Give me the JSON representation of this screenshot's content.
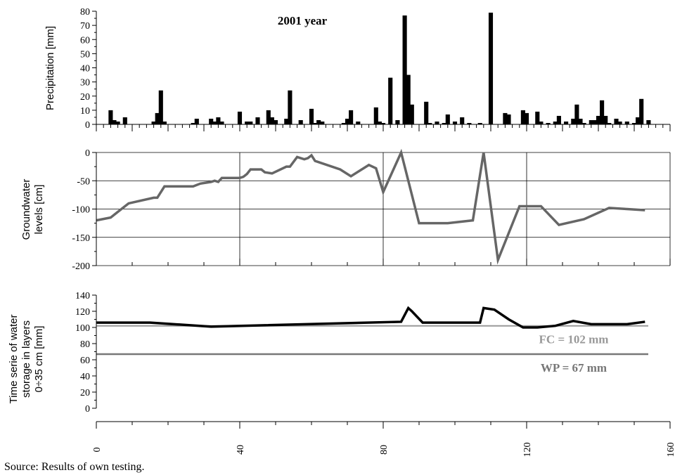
{
  "source_note": "Source: Results of own testing.",
  "chart_data": [
    {
      "type": "bar",
      "title": "2001 year",
      "ylabel": "Precipitation [mm]",
      "ylim": [
        0,
        80
      ],
      "yticks": [
        0,
        10,
        20,
        30,
        40,
        50,
        60,
        70,
        80
      ],
      "xlim": [
        0,
        160
      ],
      "color": "#000000",
      "x": [
        4,
        5,
        6,
        8,
        16,
        17,
        18,
        19,
        27,
        28,
        32,
        33,
        34,
        35,
        40,
        42,
        43,
        45,
        48,
        49,
        50,
        53,
        54,
        57,
        60,
        61,
        62,
        63,
        69,
        70,
        71,
        73,
        78,
        79,
        80,
        82,
        84,
        86,
        87,
        88,
        92,
        93,
        95,
        97,
        98,
        100,
        102,
        104,
        107,
        110,
        114,
        115,
        119,
        120,
        123,
        124,
        126,
        128,
        129,
        131,
        133,
        134,
        135,
        136,
        138,
        139,
        140,
        141,
        142,
        143,
        145,
        146,
        148,
        150,
        151,
        152,
        154
      ],
      "values": [
        10,
        3,
        2,
        5,
        2,
        8,
        24,
        2,
        1,
        4,
        4,
        2,
        5,
        2,
        9,
        2,
        2,
        5,
        10,
        5,
        3,
        4,
        24,
        3,
        11,
        1,
        3,
        2,
        1,
        4,
        10,
        2,
        12,
        2,
        1,
        33,
        3,
        77,
        35,
        14,
        16,
        1,
        2,
        1,
        7,
        2,
        5,
        1,
        1,
        79,
        8,
        7,
        10,
        8,
        9,
        2,
        1,
        2,
        6,
        2,
        4,
        14,
        4,
        1,
        3,
        3,
        6,
        17,
        6,
        1,
        4,
        2,
        2,
        1,
        5,
        18,
        3
      ]
    },
    {
      "type": "line",
      "ylabel": "Groundwater levels [cm]",
      "ylim": [
        -200,
        0
      ],
      "yticks": [
        0,
        -50,
        -100,
        -150,
        -200
      ],
      "xlim": [
        0,
        160
      ],
      "grid": true,
      "color": "#666666",
      "x": [
        0,
        4,
        6,
        9,
        16,
        17,
        19,
        27,
        29,
        32,
        33,
        34,
        35,
        38,
        40,
        41,
        42,
        43,
        46,
        47,
        49,
        53,
        54,
        56,
        58,
        59,
        60,
        61,
        68,
        71,
        76,
        78,
        80,
        85,
        90,
        98,
        105,
        108,
        112,
        118,
        124,
        129,
        136,
        143,
        148,
        153
      ],
      "y": [
        -120,
        -115,
        -105,
        -90,
        -80,
        -80,
        -60,
        -60,
        -55,
        -52,
        -50,
        -52,
        -45,
        -45,
        -45,
        -43,
        -38,
        -30,
        -30,
        -35,
        -37,
        -25,
        -25,
        -8,
        -12,
        -10,
        -5,
        -15,
        -30,
        -42,
        -22,
        -28,
        -70,
        0,
        -125,
        -125,
        -120,
        0,
        -190,
        -95,
        -95,
        -128,
        -118,
        -98,
        -100,
        -102
      ]
    },
    {
      "type": "line",
      "ylabel": "Time serie of water storage in layers 0÷35 cm [mm]",
      "ylim": [
        0,
        140
      ],
      "yticks": [
        0,
        20,
        40,
        60,
        80,
        100,
        120,
        140
      ],
      "xlim": [
        0,
        160
      ],
      "xticks": [
        0,
        40,
        80,
        120,
        160
      ],
      "color": "#000000",
      "x": [
        0,
        15,
        32,
        85,
        87,
        88,
        91,
        94,
        104,
        107,
        108,
        111,
        115,
        119,
        123,
        128,
        133,
        138,
        143,
        148,
        153
      ],
      "y": [
        106,
        106,
        101,
        107,
        124,
        120,
        106,
        106,
        106,
        106,
        124,
        122,
        110,
        100,
        100,
        102,
        108,
        104,
        104,
        104,
        107
      ],
      "reference_lines": [
        {
          "label": "FC = 102 mm",
          "value": 102,
          "color": "#999999"
        },
        {
          "label": "WP = 67 mm",
          "value": 67,
          "color": "#777777"
        }
      ]
    }
  ]
}
